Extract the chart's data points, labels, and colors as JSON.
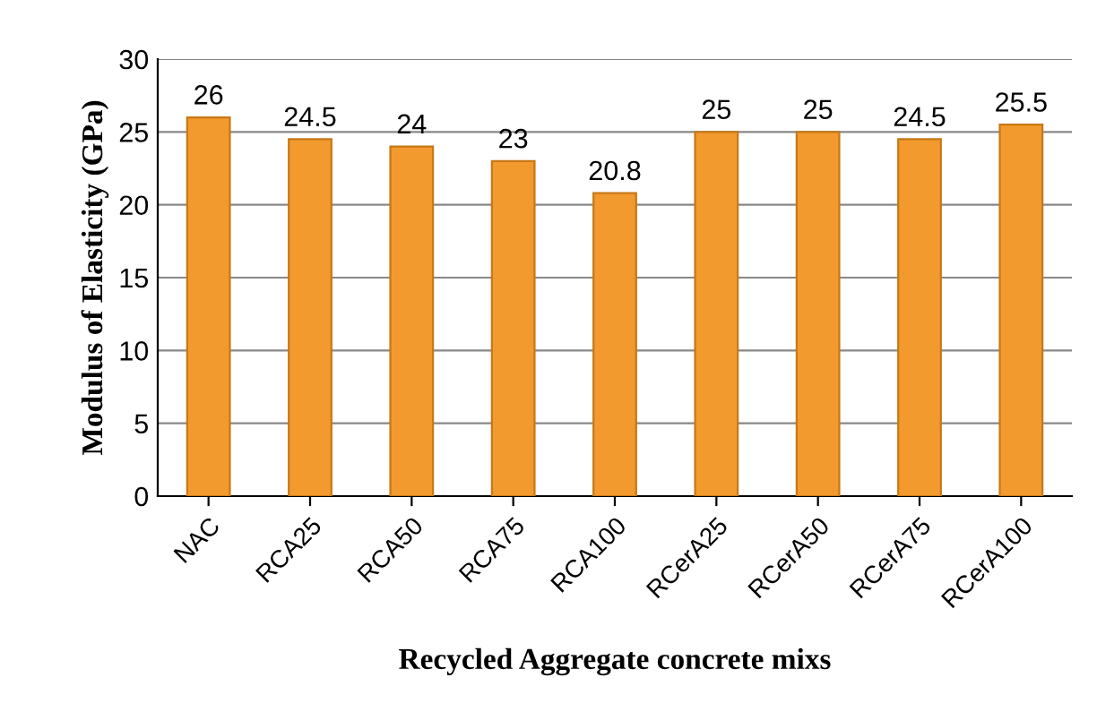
{
  "chart_data": {
    "type": "bar",
    "xlabel": "Recycled Aggregate concrete mixs",
    "ylabel": "Modulus of Elasticity (GPa)",
    "categories": [
      "NAC",
      "RCA25",
      "RCA50",
      "RCA75",
      "RCA100",
      "RCerA25",
      "RCerA50",
      "RCerA75",
      "RCerA100"
    ],
    "values": [
      26,
      24.5,
      24,
      23,
      20.8,
      25,
      25,
      24.5,
      25.5
    ],
    "color": "#f29a2e",
    "ylim": [
      0,
      30
    ],
    "yticks": [
      0,
      5,
      10,
      15,
      20,
      25,
      30
    ],
    "grid": "y",
    "data_labels": true
  }
}
